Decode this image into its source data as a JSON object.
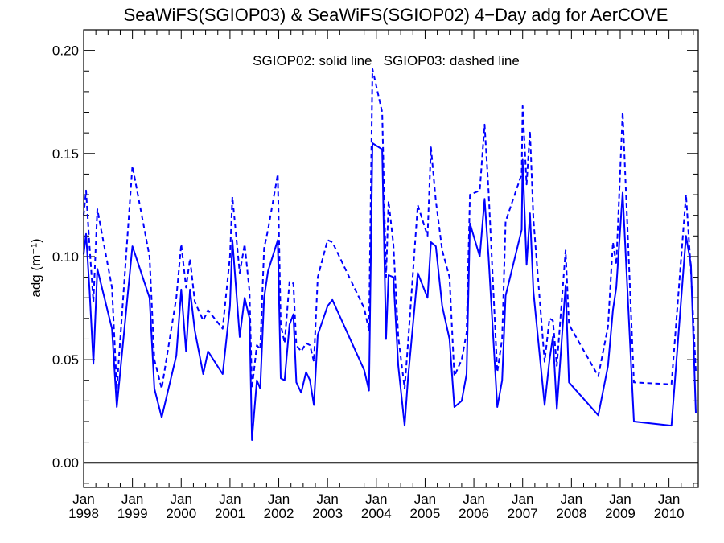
{
  "chart_data": {
    "type": "line",
    "title": "SeaWiFS(SGIOP03) & SeaWiFS(SGIOP02) 4−Day adg for AerCOVE",
    "annotation": "SGIOP02: solid line   SGIOP03: dashed line",
    "ylabel": "adg (m⁻¹)",
    "xlabel": "",
    "xlim": [
      1998.0,
      2010.6
    ],
    "ylim": [
      -0.012,
      0.21
    ],
    "yticks": [
      0.0,
      0.05,
      0.1,
      0.15,
      0.2
    ],
    "ytick_labels": [
      "0.00",
      "0.05",
      "0.10",
      "0.15",
      "0.20"
    ],
    "xticks": [
      {
        "month": "Jan",
        "year": "1998",
        "x": 1998.0
      },
      {
        "month": "Jan",
        "year": "1999",
        "x": 1999.0
      },
      {
        "month": "Jan",
        "year": "2000",
        "x": 2000.0
      },
      {
        "month": "Jan",
        "year": "2001",
        "x": 2001.0
      },
      {
        "month": "Jan",
        "year": "2002",
        "x": 2002.0
      },
      {
        "month": "Jan",
        "year": "2003",
        "x": 2003.0
      },
      {
        "month": "Jan",
        "year": "2004",
        "x": 2004.0
      },
      {
        "month": "Jan",
        "year": "2005",
        "x": 2005.0
      },
      {
        "month": "Jan",
        "year": "2006",
        "x": 2006.0
      },
      {
        "month": "Jan",
        "year": "2007",
        "x": 2007.0
      },
      {
        "month": "Jan",
        "year": "2008",
        "x": 2008.0
      },
      {
        "month": "Jan",
        "year": "2009",
        "x": 2009.0
      },
      {
        "month": "Jan",
        "year": "2010",
        "x": 2010.0
      }
    ],
    "reference_line": {
      "y": 0.0,
      "color": "#000000"
    },
    "grid": false,
    "series": [
      {
        "name": "SGIOP02",
        "style": "solid",
        "color": "#0000ff",
        "points": [
          [
            1998.0,
            0.101
          ],
          [
            1998.05,
            0.111
          ],
          [
            1998.12,
            0.084
          ],
          [
            1998.2,
            0.048
          ],
          [
            1998.28,
            0.094
          ],
          [
            1998.58,
            0.065
          ],
          [
            1998.68,
            0.027
          ],
          [
            1999.0,
            0.105
          ],
          [
            1999.35,
            0.08
          ],
          [
            1999.45,
            0.036
          ],
          [
            1999.6,
            0.022
          ],
          [
            1999.9,
            0.052
          ],
          [
            2000.0,
            0.084
          ],
          [
            2000.1,
            0.054
          ],
          [
            2000.18,
            0.084
          ],
          [
            2000.28,
            0.064
          ],
          [
            2000.45,
            0.043
          ],
          [
            2000.55,
            0.054
          ],
          [
            2000.85,
            0.043
          ],
          [
            2001.0,
            0.076
          ],
          [
            2001.05,
            0.108
          ],
          [
            2001.2,
            0.061
          ],
          [
            2001.3,
            0.08
          ],
          [
            2001.4,
            0.07
          ],
          [
            2001.45,
            0.011
          ],
          [
            2001.55,
            0.04
          ],
          [
            2001.62,
            0.036
          ],
          [
            2001.7,
            0.08
          ],
          [
            2001.78,
            0.093
          ],
          [
            2001.98,
            0.108
          ],
          [
            2002.04,
            0.041
          ],
          [
            2002.12,
            0.04
          ],
          [
            2002.22,
            0.067
          ],
          [
            2002.3,
            0.072
          ],
          [
            2002.36,
            0.039
          ],
          [
            2002.46,
            0.034
          ],
          [
            2002.56,
            0.044
          ],
          [
            2002.64,
            0.04
          ],
          [
            2002.72,
            0.028
          ],
          [
            2002.8,
            0.062
          ],
          [
            2003.0,
            0.076
          ],
          [
            2003.1,
            0.079
          ],
          [
            2003.75,
            0.045
          ],
          [
            2003.85,
            0.035
          ],
          [
            2003.92,
            0.155
          ],
          [
            2004.12,
            0.152
          ],
          [
            2004.2,
            0.06
          ],
          [
            2004.25,
            0.091
          ],
          [
            2004.35,
            0.09
          ],
          [
            2004.45,
            0.047
          ],
          [
            2004.58,
            0.018
          ],
          [
            2004.65,
            0.041
          ],
          [
            2004.85,
            0.092
          ],
          [
            2005.05,
            0.08
          ],
          [
            2005.12,
            0.107
          ],
          [
            2005.22,
            0.105
          ],
          [
            2005.35,
            0.076
          ],
          [
            2005.5,
            0.06
          ],
          [
            2005.6,
            0.027
          ],
          [
            2005.75,
            0.03
          ],
          [
            2005.85,
            0.043
          ],
          [
            2005.92,
            0.116
          ],
          [
            2006.12,
            0.1
          ],
          [
            2006.22,
            0.128
          ],
          [
            2006.3,
            0.1
          ],
          [
            2006.48,
            0.027
          ],
          [
            2006.58,
            0.04
          ],
          [
            2006.65,
            0.081
          ],
          [
            2006.98,
            0.113
          ],
          [
            2007.0,
            0.147
          ],
          [
            2007.08,
            0.096
          ],
          [
            2007.15,
            0.121
          ],
          [
            2007.22,
            0.083
          ],
          [
            2007.45,
            0.028
          ],
          [
            2007.55,
            0.05
          ],
          [
            2007.62,
            0.061
          ],
          [
            2007.7,
            0.026
          ],
          [
            2007.88,
            0.086
          ],
          [
            2007.95,
            0.039
          ],
          [
            2008.55,
            0.023
          ],
          [
            2008.75,
            0.047
          ],
          [
            2008.85,
            0.074
          ],
          [
            2008.92,
            0.085
          ],
          [
            2009.05,
            0.131
          ],
          [
            2009.28,
            0.02
          ],
          [
            2010.05,
            0.018
          ],
          [
            2010.35,
            0.11
          ],
          [
            2010.45,
            0.096
          ],
          [
            2010.55,
            0.024
          ]
        ]
      },
      {
        "name": "SGIOP03",
        "style": "dashed",
        "color": "#0000ff",
        "points": [
          [
            1998.0,
            0.12
          ],
          [
            1998.05,
            0.132
          ],
          [
            1998.12,
            0.105
          ],
          [
            1998.2,
            0.078
          ],
          [
            1998.28,
            0.123
          ],
          [
            1998.58,
            0.085
          ],
          [
            1998.68,
            0.036
          ],
          [
            1999.0,
            0.144
          ],
          [
            1999.35,
            0.1
          ],
          [
            1999.45,
            0.05
          ],
          [
            1999.6,
            0.036
          ],
          [
            1999.9,
            0.08
          ],
          [
            2000.0,
            0.106
          ],
          [
            2000.1,
            0.085
          ],
          [
            2000.18,
            0.099
          ],
          [
            2000.28,
            0.078
          ],
          [
            2000.45,
            0.069
          ],
          [
            2000.55,
            0.074
          ],
          [
            2000.85,
            0.065
          ],
          [
            2001.0,
            0.1
          ],
          [
            2001.05,
            0.129
          ],
          [
            2001.2,
            0.092
          ],
          [
            2001.3,
            0.106
          ],
          [
            2001.4,
            0.083
          ],
          [
            2001.45,
            0.036
          ],
          [
            2001.55,
            0.057
          ],
          [
            2001.62,
            0.055
          ],
          [
            2001.7,
            0.104
          ],
          [
            2001.78,
            0.113
          ],
          [
            2001.98,
            0.14
          ],
          [
            2002.04,
            0.067
          ],
          [
            2002.12,
            0.058
          ],
          [
            2002.22,
            0.088
          ],
          [
            2002.3,
            0.087
          ],
          [
            2002.36,
            0.057
          ],
          [
            2002.46,
            0.054
          ],
          [
            2002.56,
            0.058
          ],
          [
            2002.64,
            0.057
          ],
          [
            2002.72,
            0.049
          ],
          [
            2002.8,
            0.09
          ],
          [
            2003.0,
            0.108
          ],
          [
            2003.1,
            0.107
          ],
          [
            2003.75,
            0.075
          ],
          [
            2003.85,
            0.064
          ],
          [
            2003.92,
            0.191
          ],
          [
            2004.12,
            0.17
          ],
          [
            2004.2,
            0.09
          ],
          [
            2004.25,
            0.127
          ],
          [
            2004.35,
            0.106
          ],
          [
            2004.45,
            0.061
          ],
          [
            2004.58,
            0.036
          ],
          [
            2004.65,
            0.058
          ],
          [
            2004.85,
            0.125
          ],
          [
            2005.05,
            0.11
          ],
          [
            2005.12,
            0.153
          ],
          [
            2005.22,
            0.127
          ],
          [
            2005.35,
            0.103
          ],
          [
            2005.5,
            0.09
          ],
          [
            2005.6,
            0.042
          ],
          [
            2005.75,
            0.05
          ],
          [
            2005.85,
            0.063
          ],
          [
            2005.92,
            0.13
          ],
          [
            2006.12,
            0.132
          ],
          [
            2006.22,
            0.164
          ],
          [
            2006.3,
            0.132
          ],
          [
            2006.48,
            0.044
          ],
          [
            2006.58,
            0.06
          ],
          [
            2006.65,
            0.117
          ],
          [
            2006.98,
            0.14
          ],
          [
            2007.0,
            0.173
          ],
          [
            2007.08,
            0.135
          ],
          [
            2007.15,
            0.161
          ],
          [
            2007.22,
            0.118
          ],
          [
            2007.45,
            0.049
          ],
          [
            2007.55,
            0.07
          ],
          [
            2007.62,
            0.069
          ],
          [
            2007.7,
            0.047
          ],
          [
            2007.88,
            0.103
          ],
          [
            2007.95,
            0.067
          ],
          [
            2008.55,
            0.042
          ],
          [
            2008.75,
            0.066
          ],
          [
            2008.85,
            0.107
          ],
          [
            2008.92,
            0.096
          ],
          [
            2009.05,
            0.17
          ],
          [
            2009.28,
            0.039
          ],
          [
            2010.05,
            0.038
          ],
          [
            2010.35,
            0.13
          ],
          [
            2010.45,
            0.093
          ],
          [
            2010.55,
            0.044
          ]
        ]
      }
    ]
  }
}
